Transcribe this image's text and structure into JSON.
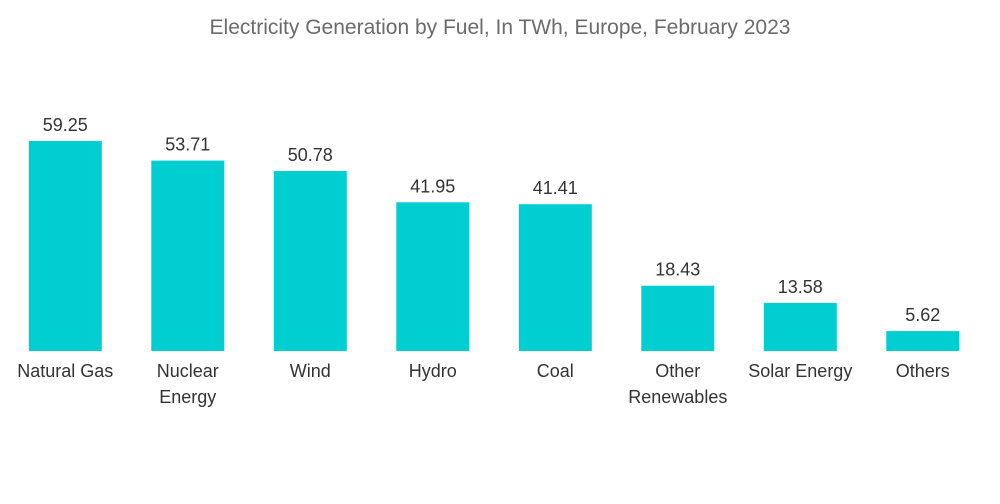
{
  "chart_data": {
    "type": "bar",
    "title": "Electricity Generation by Fuel, In TWh, Europe, February 2023",
    "xlabel": "",
    "ylabel": "",
    "ylim": [
      0,
      59.25
    ],
    "grid": false,
    "legend": "none",
    "bar_color": "#00CED1",
    "categories": [
      [
        "Natural Gas"
      ],
      [
        "Nuclear",
        "Energy"
      ],
      [
        "Wind"
      ],
      [
        "Hydro"
      ],
      [
        "Coal"
      ],
      [
        "Other",
        "Renewables"
      ],
      [
        "Solar Energy"
      ],
      [
        "Others"
      ]
    ],
    "values": [
      59.25,
      53.71,
      50.78,
      41.95,
      41.41,
      18.43,
      13.58,
      5.62
    ],
    "data_labels": [
      "59.25",
      "53.71",
      "50.78",
      "41.95",
      "41.41",
      "18.43",
      "13.58",
      "5.62"
    ]
  }
}
